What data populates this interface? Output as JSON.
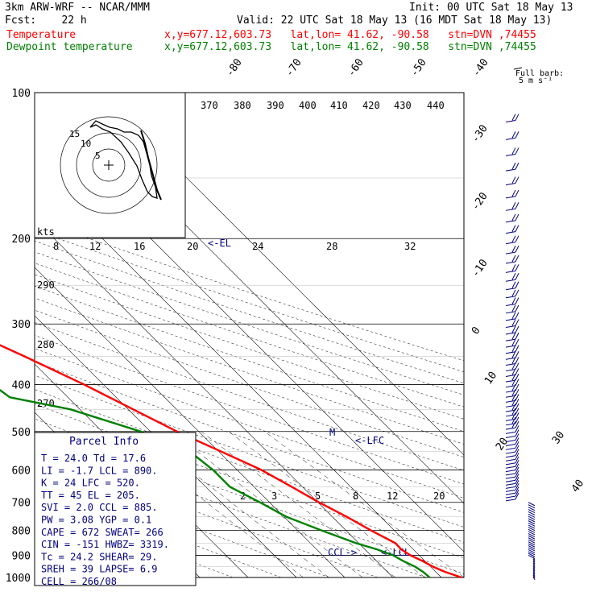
{
  "header": {
    "model": "3km ARW-WRF -- NCAR/MMM",
    "init": "Init: 00 UTC Sat 18 May 13",
    "fcst": "Fcst:    22 h",
    "valid": "Valid: 22 UTC Sat 18 May 13 (16 MDT Sat 18 May 13)",
    "temp_label": "Temperature",
    "temp_info": "x,y=677.12,603.73   lat,lon= 41.62, -90.58   stn=DVN ,74455",
    "dew_label": "Dewpoint temperature",
    "dew_info": "x,y=677.12,603.73   lat,lon= 41.62, -90.58   stn=DVN ,74455"
  },
  "colors": {
    "temperature": "#ff0000",
    "dewpoint": "#008000",
    "labels": "#000080",
    "header_red": "#ff0000",
    "header_green": "#008000"
  },
  "full_barb": {
    "line1": "Full barb:",
    "line2": "5 m s⁻¹"
  },
  "hodograph": {
    "units": "kts",
    "rings": [
      "5",
      "10",
      "15"
    ]
  },
  "parcel_info": {
    "title": "Parcel Info",
    "rows": [
      "T  =    24.0  Td =  17.6",
      "LI =    -1.7  LCL =  890.",
      "K  =      24  LFC =  520.",
      "TT =      45  EL  =  205.",
      "SVI =    2.0  CCL =  885.",
      "PW =    3.08  YGP =   0.1",
      "CAPE =   672  SWEAT=  266",
      "CIN =   -151  HWBZ= 3319.",
      "Tc =    24.2  SHEAR=  29.",
      "SREH =    39  LAPSE=  6.9",
      "CELL = 266/08"
    ]
  },
  "chart_data": {
    "type": "line",
    "title": "",
    "ylabel_ticks": [
      "100",
      "200",
      "300",
      "400",
      "500",
      "600",
      "700",
      "800",
      "900",
      "1000"
    ],
    "pressure_levels": [
      100,
      200,
      300,
      400,
      500,
      600,
      700,
      800,
      900,
      1000
    ],
    "isotherm_labels_top": [
      "-80",
      "-70",
      "-60",
      "-50",
      "-40"
    ],
    "isotherm_labels_right": [
      "-30",
      "-20",
      "-10",
      "0",
      "10",
      "20",
      "30",
      "40"
    ],
    "theta_labels_top": [
      "370",
      "380",
      "390",
      "400",
      "410",
      "420",
      "430",
      "440"
    ],
    "mixing_ratio_labels": [
      "8",
      "12",
      "16",
      "20",
      "24",
      "28",
      "32"
    ],
    "lower_mixing_ratio_labels": [
      "2",
      "3",
      "5",
      "8",
      "12",
      "20"
    ],
    "theta_labels_left": [
      "290",
      "280",
      "270"
    ],
    "markers": {
      "EL": "<-EL",
      "LFC": "<-LFC",
      "LCL": "<-LCL",
      "CCL": "CCL->",
      "M": "M"
    },
    "series": [
      {
        "name": "Temperature",
        "points": [
          [
            1000,
            24.2
          ],
          [
            975,
            22.0
          ],
          [
            950,
            20.5
          ],
          [
            925,
            19.5
          ],
          [
            900,
            18.2
          ],
          [
            875,
            17.5
          ],
          [
            850,
            17.6
          ],
          [
            800,
            15.2
          ],
          [
            750,
            13.0
          ],
          [
            700,
            10.2
          ],
          [
            650,
            7.8
          ],
          [
            600,
            5.0
          ],
          [
            550,
            0.5
          ],
          [
            500,
            -4.5
          ],
          [
            450,
            -9.0
          ],
          [
            400,
            -14.0
          ],
          [
            350,
            -20.5
          ],
          [
            300,
            -28.5
          ],
          [
            250,
            -38.0
          ],
          [
            220,
            -44.5
          ],
          [
            200,
            -47.0
          ],
          [
            180,
            -47.5
          ],
          [
            160,
            -46.5
          ],
          [
            150,
            -45.5
          ],
          [
            140,
            -47.0
          ],
          [
            130,
            -48.0
          ],
          [
            120,
            -48.5
          ],
          [
            110,
            -49.0
          ],
          [
            100,
            -49.5
          ]
        ]
      },
      {
        "name": "Dewpoint temperature",
        "points": [
          [
            1000,
            17.6
          ],
          [
            975,
            17.4
          ],
          [
            950,
            16.8
          ],
          [
            925,
            15.5
          ],
          [
            900,
            14.6
          ],
          [
            875,
            12.5
          ],
          [
            850,
            9.5
          ],
          [
            800,
            5.0
          ],
          [
            750,
            0.5
          ],
          [
            700,
            -2.0
          ],
          [
            650,
            -5.0
          ],
          [
            600,
            -5.0
          ],
          [
            550,
            -6.0
          ],
          [
            500,
            -12.0
          ],
          [
            450,
            -22.0
          ],
          [
            425,
            -32.0
          ],
          [
            400,
            -33.0
          ],
          [
            350,
            -37.0
          ],
          [
            320,
            -39.0
          ],
          [
            300,
            -44.0
          ],
          [
            260,
            -45.0
          ],
          [
            220,
            -59.0
          ],
          [
            200,
            -61.0
          ],
          [
            180,
            -61.5
          ],
          [
            160,
            -62.5
          ],
          [
            140,
            -70.0
          ],
          [
            130,
            -71.0
          ],
          [
            110,
            -67.0
          ],
          [
            100,
            -65.0
          ]
        ]
      }
    ]
  }
}
